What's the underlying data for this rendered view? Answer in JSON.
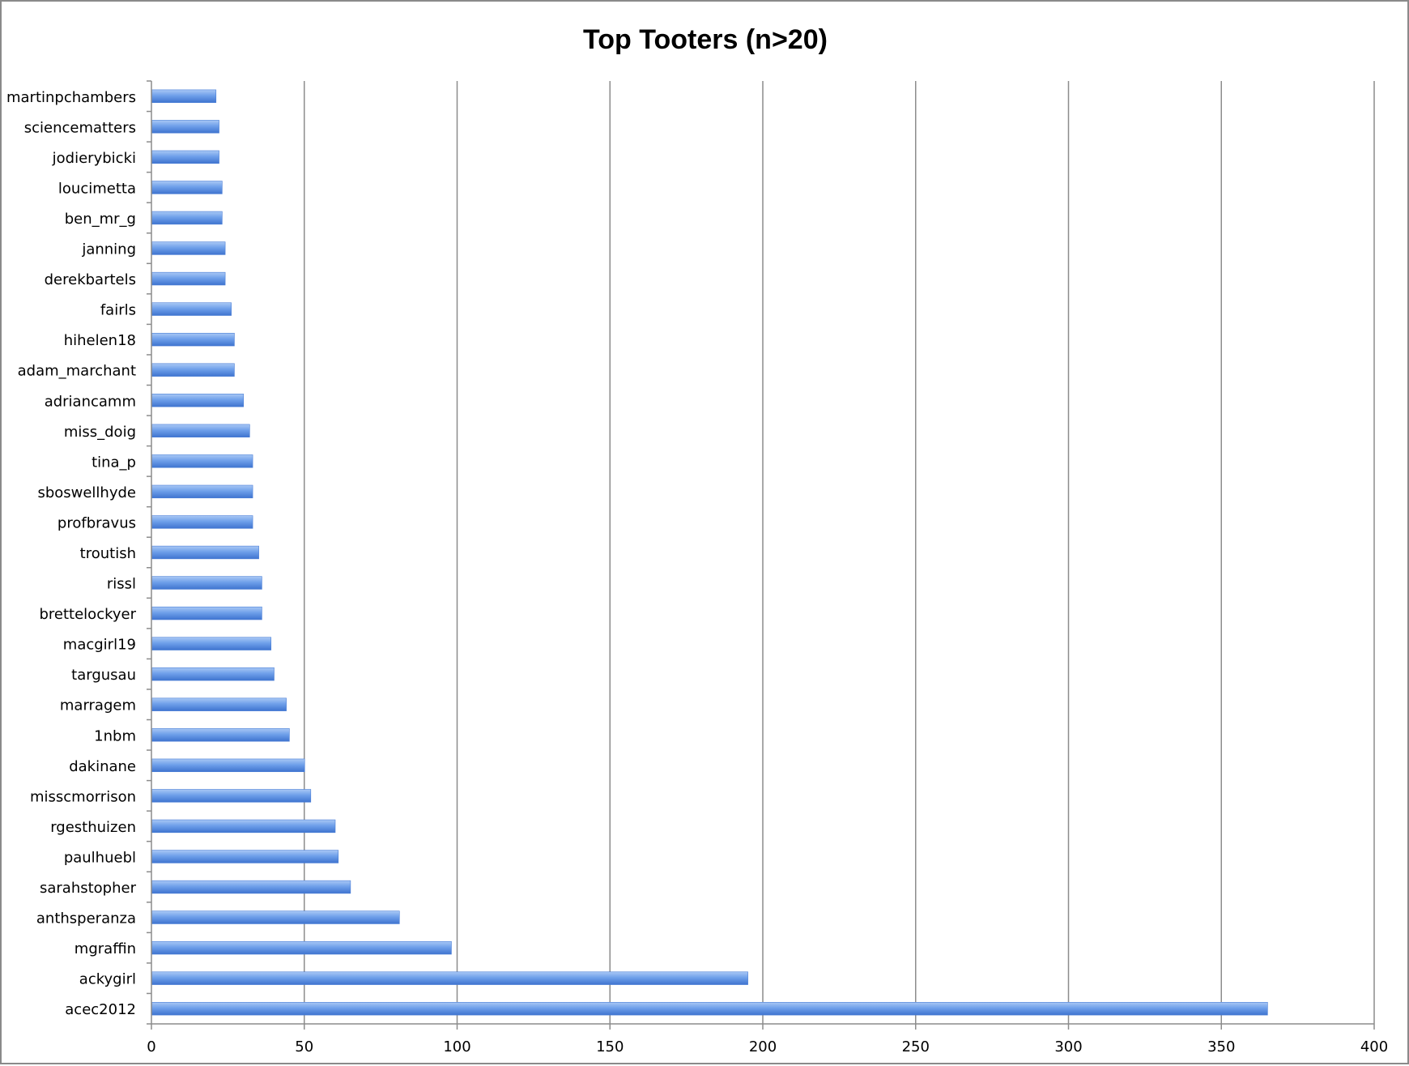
{
  "chart_data": {
    "type": "bar",
    "orientation": "horizontal",
    "title": "Top Tooters (n>20)",
    "xlabel": "",
    "ylabel": "",
    "xlim": [
      0,
      400
    ],
    "x_ticks": [
      0,
      50,
      100,
      150,
      200,
      250,
      300,
      350,
      400
    ],
    "grid": "vertical major gridlines",
    "legend": "none",
    "bar_color": "#5b8fe0",
    "categories": [
      "martinpchambers",
      "sciencematters",
      "jodierybicki",
      "loucimetta",
      "ben_mr_g",
      "janning",
      "derekbartels",
      "fairls",
      "hihelen18",
      "adam_marchant",
      "adriancamm",
      "miss_doig",
      "tina_p",
      "sboswellhyde",
      "profbravus",
      "troutish",
      "rissl",
      "brettelockyer",
      "macgirl19",
      "targusau",
      "marragem",
      "1nbm",
      "dakinane",
      "misscmorrison",
      "rgesthuizen",
      "paulhuebl",
      "sarahstopher",
      "anthsperanza",
      "mgraffin",
      "ackygirl",
      "acec2012"
    ],
    "values": [
      21,
      22,
      22,
      23,
      23,
      24,
      24,
      26,
      27,
      27,
      30,
      32,
      33,
      33,
      33,
      35,
      36,
      36,
      39,
      40,
      44,
      45,
      50,
      52,
      60,
      61,
      65,
      81,
      98,
      195,
      365
    ]
  }
}
